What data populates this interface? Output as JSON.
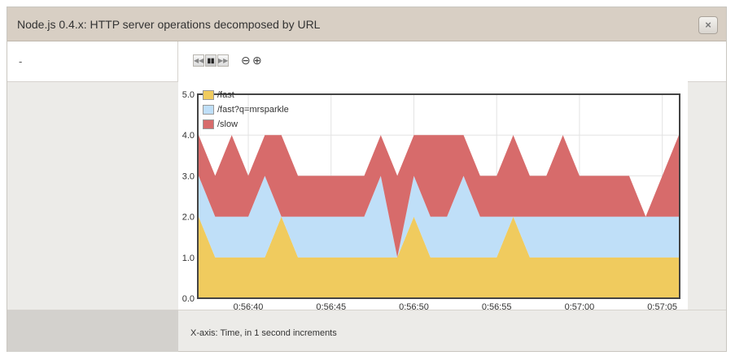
{
  "window": {
    "title": "Node.js 0.4.x: HTTP server operations decomposed by URL",
    "close_glyph": "×"
  },
  "left": {
    "text": "-"
  },
  "controls": {
    "rewind_glyph": "◀◀",
    "pause_glyph": "▮▮",
    "forward_glyph": "▶▶",
    "zoom_out_glyph": "⊖",
    "zoom_in_glyph": "⊕"
  },
  "footer": {
    "xaxis_note": "X-axis: Time, in 1 second increments"
  },
  "chart_data": {
    "type": "area",
    "stacked": true,
    "ylim": [
      0,
      5
    ],
    "yticks": [
      "0.0",
      "1.0",
      "2.0",
      "3.0",
      "4.0",
      "5.0"
    ],
    "xtick_labels": [
      "0:56:40",
      "0:56:45",
      "0:56:50",
      "0:56:55",
      "0:57:00",
      "0:57:05"
    ],
    "xtick_index": [
      3,
      8,
      13,
      18,
      23,
      28
    ],
    "grid": true,
    "legend": "top-left",
    "series": [
      {
        "name": "/fast",
        "color": "#f0cb5e",
        "values": [
          2,
          1,
          1,
          1,
          1,
          2,
          1,
          1,
          1,
          1,
          1,
          1,
          1,
          2,
          1,
          1,
          1,
          1,
          1,
          2,
          1,
          1,
          1,
          1,
          1,
          1,
          1,
          1,
          1,
          1
        ]
      },
      {
        "name": "/fast?q=mrsparkle",
        "color": "#bfdff8",
        "values": [
          1,
          1,
          1,
          1,
          2,
          0,
          1,
          1,
          1,
          1,
          1,
          2,
          0,
          1,
          1,
          1,
          2,
          1,
          1,
          0,
          1,
          1,
          1,
          1,
          1,
          1,
          1,
          1,
          1,
          1
        ]
      },
      {
        "name": "/slow",
        "color": "#d76b6b",
        "values": [
          1,
          1,
          2,
          1,
          1,
          2,
          1,
          1,
          1,
          1,
          1,
          1,
          2,
          1,
          2,
          2,
          1,
          1,
          1,
          2,
          1,
          1,
          2,
          1,
          1,
          1,
          1,
          0,
          1,
          2
        ]
      }
    ]
  }
}
